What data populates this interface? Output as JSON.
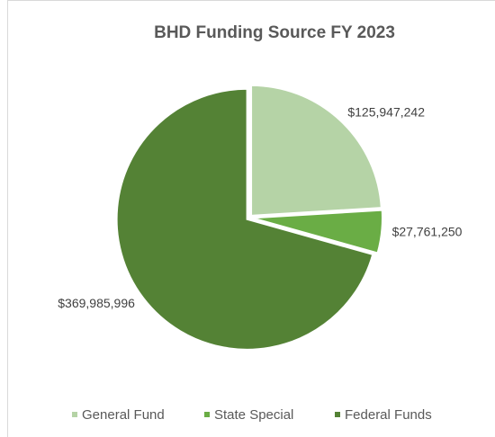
{
  "chart_data": {
    "type": "pie",
    "title": "BHD Funding Source FY 2023",
    "categories": [
      "General Fund",
      "State Special",
      "Federal Funds"
    ],
    "values": [
      125947242,
      27761250,
      369985996
    ],
    "value_labels": [
      "$125,947,242",
      "$27,761,250",
      "$369,985,996"
    ],
    "colors": [
      "#b5d3a6",
      "#6aad45",
      "#548235"
    ],
    "legend": "bottom"
  }
}
